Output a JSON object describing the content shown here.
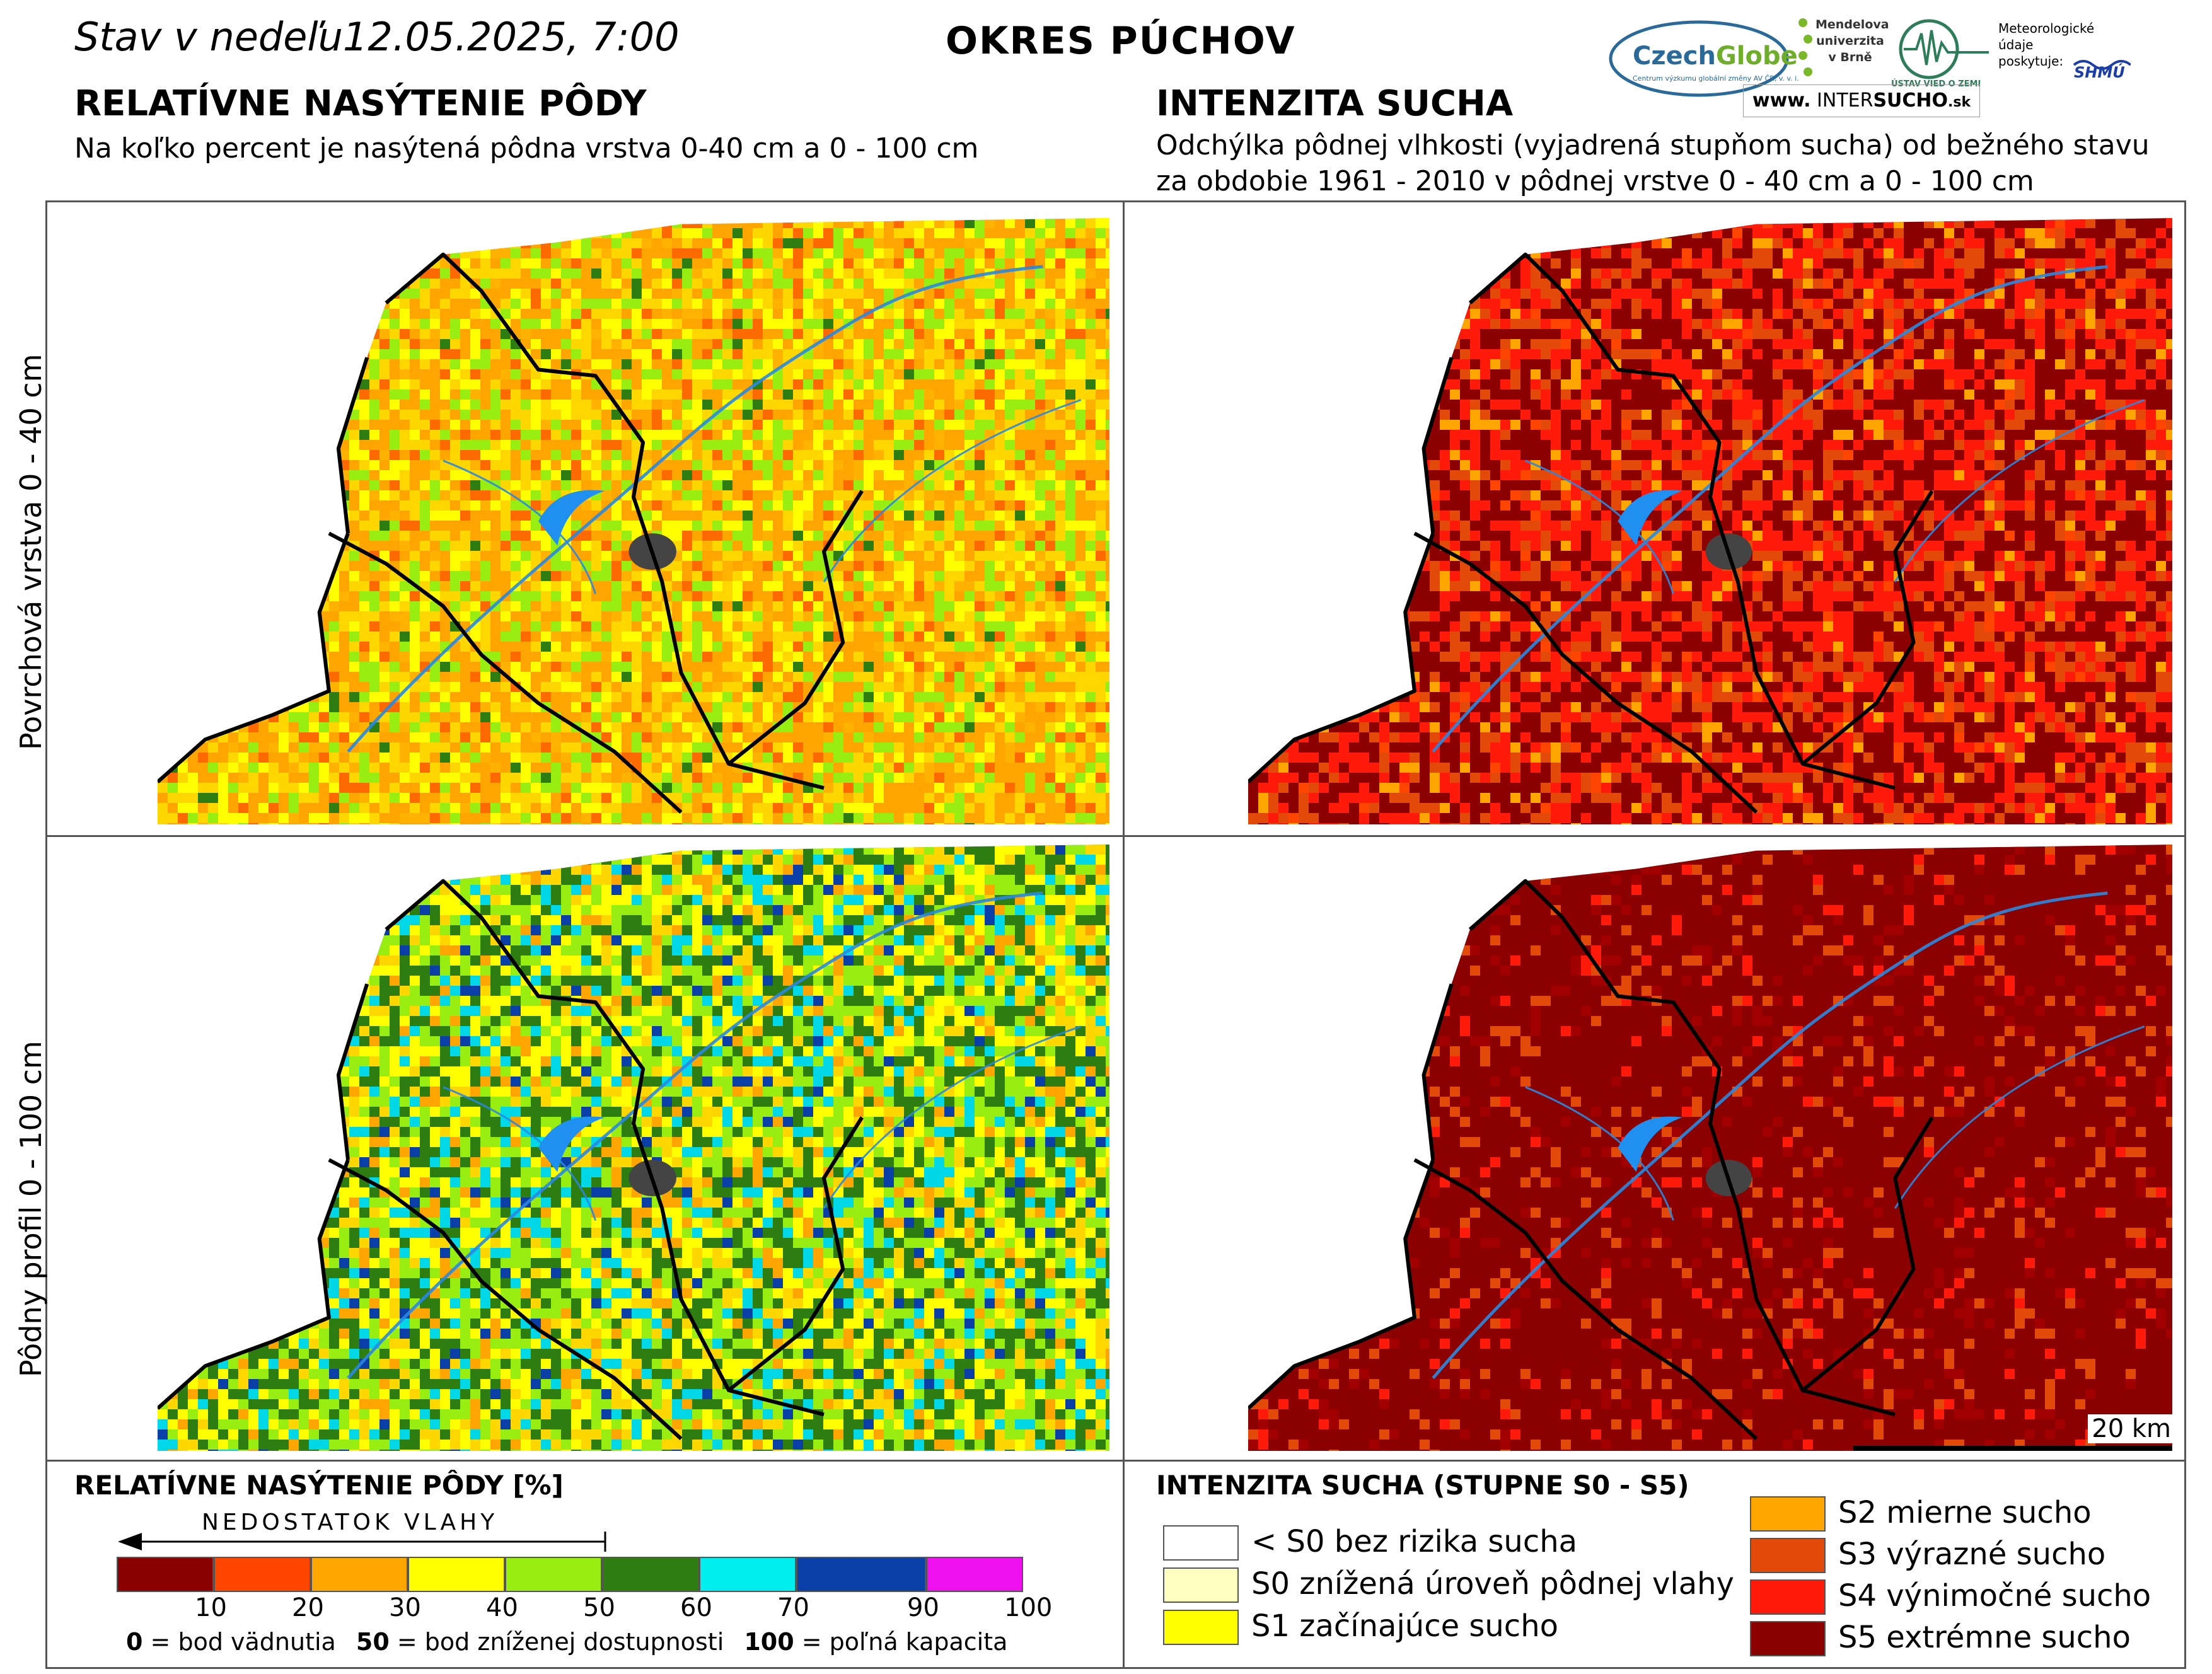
{
  "header": {
    "date": "Stav v nedeľu12.05.2025, 7:00",
    "district": "OKRES PÚCHOV"
  },
  "logos": {
    "czechglobe_a": "Czech",
    "czechglobe_b": "Globe",
    "czechglobe_sub": "Centrum výzkumu globální změny AV ČR, v. v. i.",
    "mendel": "Mendelova univerzita v Brně",
    "uvz": "ÚSTAV VIED O ZEMI",
    "shmu_text": "Meteorologické údaje poskytuje:",
    "shmu": "SHMÚ",
    "intersucho_a": "www.",
    "intersucho_b": "INTER",
    "intersucho_c": "SUCHO",
    "intersucho_d": ".sk"
  },
  "left_panel": {
    "title": "RELATÍVNE NASÝTENIE PÔDY",
    "subtitle": "Na koľko percent je nasýtená pôdna vrstva 0-40 cm a 0 - 100 cm"
  },
  "right_panel": {
    "title": "INTENZITA SUCHA",
    "subtitle_1": "Odchýlka pôdnej vlhkosti (vyjadrená stupňom sucha) od bežného stavu",
    "subtitle_2": "za obdobie 1961 - 2010 v pôdnej vrstve 0 - 40 cm a 0 - 100 cm"
  },
  "rows": {
    "top": "Povrchová vrstva 0 - 40 cm",
    "bottom": "Pôdny profil 0 - 100 cm"
  },
  "scale_bar": "20 km",
  "legend_saturation": {
    "title": "RELATÍVNE NASÝTENIE PÔDY [%]",
    "arrow_label": "NEDOSTATOK VLAHY",
    "bins": [
      {
        "color": "#8b0000",
        "label": "10"
      },
      {
        "color": "#ff4500",
        "label": "20"
      },
      {
        "color": "#ffa500",
        "label": "30"
      },
      {
        "color": "#ffff00",
        "label": "40"
      },
      {
        "color": "#99ee11",
        "label": "50"
      },
      {
        "color": "#2e7d10",
        "label": "60"
      },
      {
        "color": "#00eeee",
        "label": "70"
      },
      {
        "color": "#0a3fa8",
        "label": "90"
      },
      {
        "color": "#ee10ee",
        "label": "100"
      }
    ],
    "note_0_num": "0",
    "note_0_text": " = bod vädnutia",
    "note_50_num": "50",
    "note_50_text": " = bod zníženej dostupnosti",
    "note_100_num": "100",
    "note_100_text": " = poľná kapacita"
  },
  "legend_drought": {
    "title": "INTENZITA SUCHA (STUPNE S0 - S5)",
    "items": [
      {
        "color": "#ffffff",
        "label": "< S0 bez rizika sucha"
      },
      {
        "color": "#ffffc0",
        "label": "S0 znížená úroveň pôdnej vlahy"
      },
      {
        "color": "#ffff00",
        "label": "S1 začínajúce sucho"
      },
      {
        "color": "#ffa500",
        "label": "S2 mierne sucho"
      },
      {
        "color": "#e34a0a",
        "label": "S3 výrazné sucho"
      },
      {
        "color": "#ff1a0a",
        "label": "S4 výnimočné sucho"
      },
      {
        "color": "#8b0000",
        "label": "S5 extrémne sucho"
      }
    ]
  },
  "maps": {
    "tl_palette": [
      "#ffa500",
      "#ffd700",
      "#ffff00",
      "#99ee11",
      "#ff6a00",
      "#ffb300",
      "#2e7d10"
    ],
    "tl_weights": [
      30,
      22,
      16,
      16,
      8,
      6,
      2
    ],
    "bl_palette": [
      "#2e7d10",
      "#99ee11",
      "#ffff00",
      "#ffd700",
      "#ffa500",
      "#00d8e8",
      "#0a3fa8"
    ],
    "bl_weights": [
      24,
      22,
      20,
      12,
      8,
      10,
      4
    ],
    "tr_palette": [
      "#8b0000",
      "#ff1a0a",
      "#e34a0a",
      "#ffa500",
      "#ff4500"
    ],
    "tr_weights": [
      42,
      30,
      18,
      6,
      4
    ],
    "br_palette": [
      "#8b0000",
      "#a00000",
      "#e34a0a",
      "#ff1a0a"
    ],
    "br_weights": [
      80,
      8,
      8,
      4
    ]
  }
}
